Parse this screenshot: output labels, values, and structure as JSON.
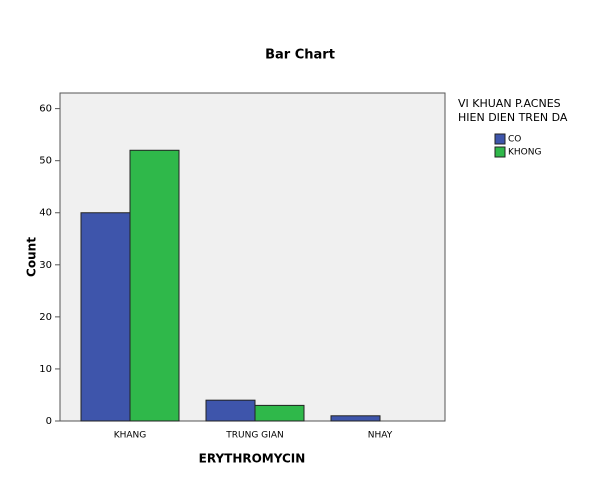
{
  "chart_data": {
    "type": "bar",
    "title": "Bar Chart",
    "x_label": "ERYTHROMYCIN",
    "y_label": "Count",
    "categories": [
      "KHANG",
      "TRUNG GIAN",
      "NHAY"
    ],
    "legend_title": [
      "VI KHUAN P.ACNES",
      "HIEN DIEN TREN DA"
    ],
    "series": [
      {
        "name": "CO",
        "color": "#3e55ab",
        "values": [
          40,
          4,
          1
        ]
      },
      {
        "name": "KHONG",
        "color": "#2fb84a",
        "values": [
          52,
          3,
          0
        ]
      }
    ],
    "ylim": [
      0,
      63
    ],
    "yticks": [
      0,
      10,
      20,
      30,
      40,
      50,
      60
    ]
  }
}
